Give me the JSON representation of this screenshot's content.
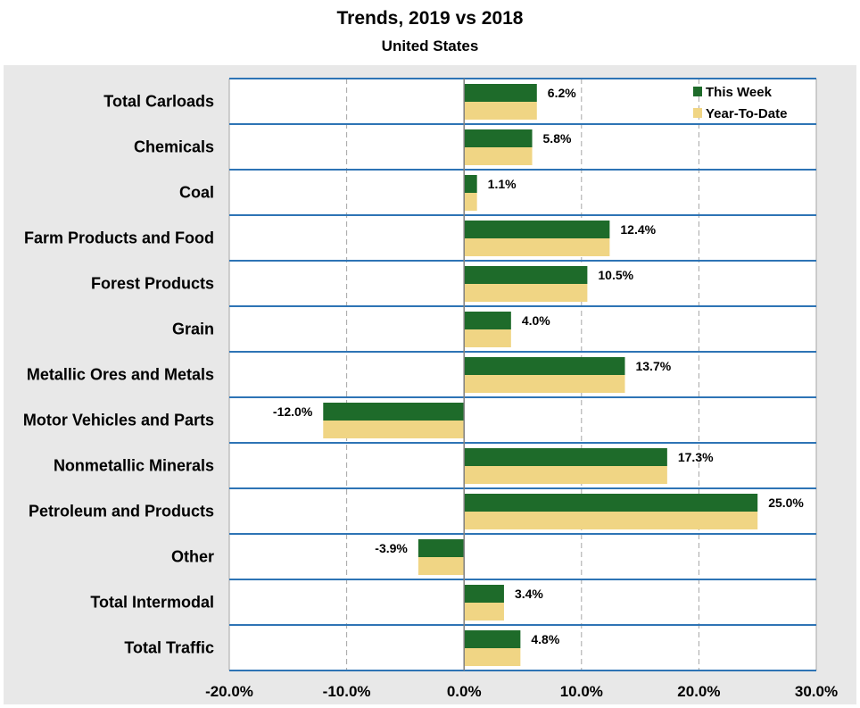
{
  "chart_data": {
    "type": "bar",
    "orientation": "horizontal",
    "title": "Trends, 2019 vs 2018",
    "subtitle": "United States",
    "categories": [
      "Total Carloads",
      "Chemicals",
      "Coal",
      "Farm Products and Food",
      "Forest Products",
      "Grain",
      "Metallic Ores and Metals",
      "Motor Vehicles and Parts",
      "Nonmetallic Minerals",
      "Petroleum and Products",
      "Other",
      "Total Intermodal",
      "Total Traffic"
    ],
    "series": [
      {
        "name": "This Week",
        "color": "#1E6B2A",
        "values": [
          6.2,
          5.8,
          1.1,
          12.4,
          10.5,
          4.0,
          13.7,
          -12.0,
          17.3,
          25.0,
          -3.9,
          3.4,
          4.8
        ],
        "labels": [
          "6.2%",
          "5.8%",
          "1.1%",
          "12.4%",
          "10.5%",
          "4.0%",
          "13.7%",
          "-12.0%",
          "17.3%",
          "25.0%",
          "-3.9%",
          "3.4%",
          "4.8%"
        ]
      },
      {
        "name": "Year-To-Date",
        "color": "#F0D584",
        "values": [
          6.2,
          5.8,
          1.1,
          12.4,
          10.5,
          4.0,
          13.7,
          -12.0,
          17.3,
          25.0,
          -3.9,
          3.4,
          4.8
        ]
      }
    ],
    "xlim": [
      -20,
      30
    ],
    "xticks": [
      -20,
      -10,
      0,
      10,
      20,
      30
    ],
    "xtick_labels": [
      "-20.0%",
      "-10.0%",
      "0.0%",
      "10.0%",
      "20.0%",
      "30.0%"
    ],
    "legend_position": "top-right",
    "grid": true,
    "colors": {
      "outer_background": "#E8E8E8",
      "plot_background": "#FFFFFF",
      "row_divider": "#2E74B5",
      "gridline": "#A6A6A6"
    }
  }
}
